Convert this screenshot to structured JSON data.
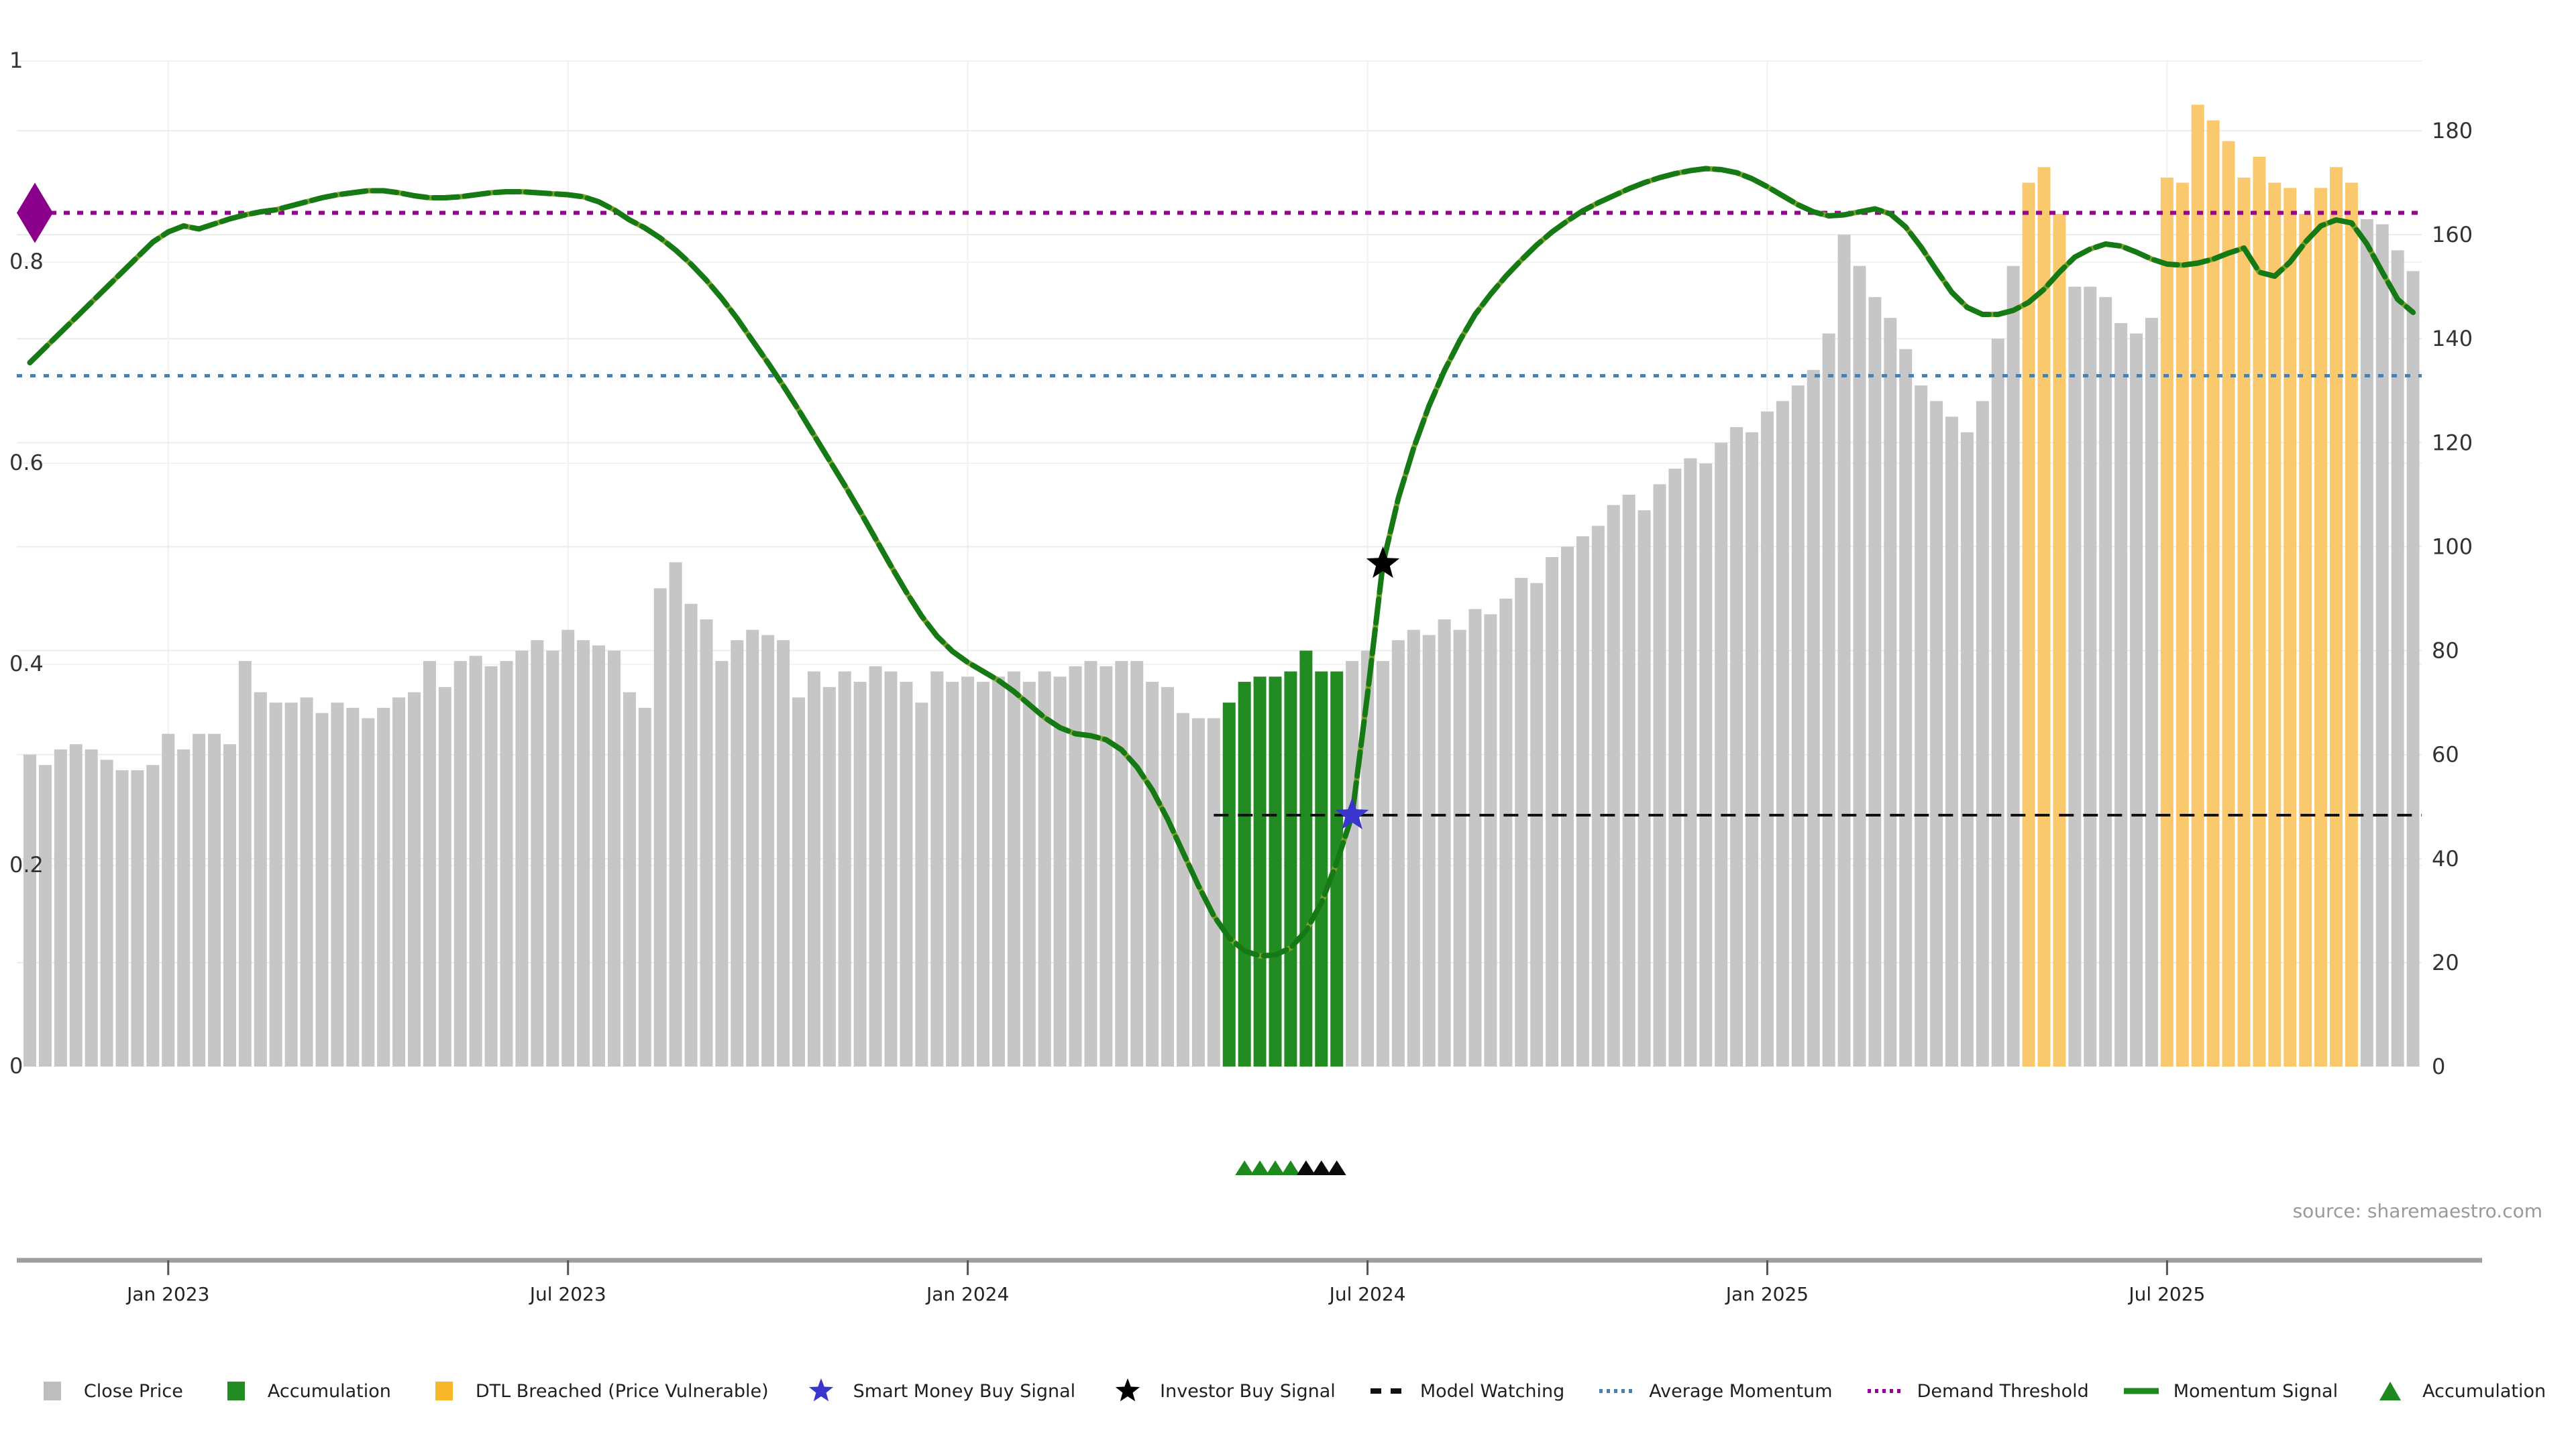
{
  "source_note": "source: sharemaestro.com",
  "colors": {
    "bar_default": "#c6c6c6",
    "bar_accumulation": "#228b22",
    "bar_dtl_breached": "#fbc96d",
    "momentum_line": "#157a15",
    "momentum_line_alt": "#7fa22e",
    "demand_threshold": "#990099",
    "average_momentum": "#4a7fae",
    "model_watching": "#111111",
    "smart_money_star": "#3a35cc",
    "investor_star": "#000000",
    "diamond": "#8b008b",
    "triangle_green": "#1e8a1e",
    "triangle_black": "#0a0a0a",
    "axis_line": "#9e9e9e",
    "tick_text": "#333333"
  },
  "axes": {
    "left": {
      "range": [
        0,
        1
      ],
      "ticks": [
        "0",
        "0.2",
        "0.4",
        "0.6",
        "0.8",
        "1"
      ]
    },
    "right": {
      "range": [
        0,
        180
      ],
      "ticks": [
        "0",
        "20",
        "40",
        "60",
        "80",
        "100",
        "120",
        "140",
        "160",
        "180"
      ]
    },
    "x": {
      "ticks": [
        {
          "label": "Jan 2023",
          "week": 9
        },
        {
          "label": "Jul 2023",
          "week": 35
        },
        {
          "label": "Jan 2024",
          "week": 61
        },
        {
          "label": "Jul 2024",
          "week": 87
        },
        {
          "label": "Jan 2025",
          "week": 113
        },
        {
          "label": "Jul 2025",
          "week": 139
        }
      ]
    }
  },
  "chart_data": {
    "type": "combo",
    "x_unit": "week",
    "weeks": 156,
    "series": [
      {
        "name": "Close Price",
        "type": "bar",
        "axis": "right",
        "values": [
          60,
          58,
          61,
          62,
          61,
          59,
          57,
          57,
          58,
          64,
          61,
          64,
          64,
          62,
          78,
          72,
          70,
          70,
          71,
          68,
          70,
          69,
          67,
          69,
          71,
          72,
          78,
          73,
          78,
          79,
          77,
          78,
          80,
          82,
          80,
          84,
          82,
          81,
          80,
          72,
          69,
          92,
          97,
          89,
          86,
          78,
          82,
          84,
          83,
          82,
          71,
          76,
          73,
          76,
          74,
          77,
          76,
          74,
          70,
          76,
          74,
          75,
          74,
          75,
          76,
          74,
          76,
          75,
          77,
          78,
          77,
          78,
          78,
          74,
          73,
          68,
          67,
          67,
          70,
          74,
          75,
          75,
          76,
          80,
          76,
          76,
          78,
          80,
          78,
          82,
          84,
          83,
          86,
          84,
          88,
          87,
          90,
          94,
          93,
          98,
          100,
          102,
          104,
          108,
          110,
          107,
          112,
          115,
          117,
          116,
          120,
          123,
          122,
          126,
          128,
          131,
          134,
          141,
          160,
          154,
          148,
          144,
          138,
          131,
          128,
          125,
          122,
          128,
          140,
          154,
          170,
          173,
          164,
          150,
          150,
          148,
          143,
          141,
          144,
          171,
          170,
          185,
          182,
          178,
          171,
          175,
          170,
          169,
          164,
          169,
          173,
          170,
          163,
          162,
          157,
          153
        ],
        "accumulation_weeks": [
          78,
          85
        ],
        "dtl_breached_weeks": [
          [
            130,
            132
          ],
          [
            139,
            151
          ]
        ]
      },
      {
        "name": "Momentum Signal",
        "type": "line",
        "axis": "left",
        "values": [
          0.7,
          0.715,
          0.73,
          0.745,
          0.76,
          0.775,
          0.79,
          0.805,
          0.82,
          0.83,
          0.836,
          0.833,
          0.838,
          0.843,
          0.847,
          0.85,
          0.852,
          0.856,
          0.86,
          0.864,
          0.867,
          0.869,
          0.871,
          0.871,
          0.869,
          0.866,
          0.864,
          0.864,
          0.865,
          0.867,
          0.869,
          0.87,
          0.87,
          0.869,
          0.868,
          0.867,
          0.865,
          0.86,
          0.852,
          0.842,
          0.834,
          0.824,
          0.812,
          0.798,
          0.782,
          0.764,
          0.744,
          0.722,
          0.7,
          0.677,
          0.653,
          0.628,
          0.603,
          0.578,
          0.552,
          0.525,
          0.498,
          0.472,
          0.448,
          0.428,
          0.413,
          0.402,
          0.393,
          0.384,
          0.373,
          0.36,
          0.347,
          0.337,
          0.331,
          0.329,
          0.325,
          0.315,
          0.298,
          0.275,
          0.246,
          0.213,
          0.18,
          0.15,
          0.128,
          0.115,
          0.11,
          0.111,
          0.118,
          0.135,
          0.163,
          0.203,
          0.25,
          0.37,
          0.5,
          0.565,
          0.615,
          0.657,
          0.692,
          0.722,
          0.748,
          0.768,
          0.786,
          0.802,
          0.817,
          0.83,
          0.841,
          0.851,
          0.859,
          0.866,
          0.873,
          0.879,
          0.884,
          0.888,
          0.891,
          0.893,
          0.892,
          0.889,
          0.883,
          0.875,
          0.866,
          0.857,
          0.85,
          0.846,
          0.847,
          0.85,
          0.853,
          0.848,
          0.835,
          0.815,
          0.792,
          0.77,
          0.755,
          0.748,
          0.748,
          0.752,
          0.76,
          0.773,
          0.79,
          0.805,
          0.813,
          0.818,
          0.816,
          0.81,
          0.803,
          0.798,
          0.797,
          0.799,
          0.803,
          0.809,
          0.814,
          0.79,
          0.786,
          0.8,
          0.82,
          0.836,
          0.842,
          0.839,
          0.818,
          0.79,
          0.763,
          0.75
        ]
      }
    ],
    "overlays": {
      "demand_threshold": {
        "value": 0.849,
        "axis": "left"
      },
      "average_momentum": {
        "value": 0.687,
        "axis": "left"
      },
      "model_watching": {
        "value": 0.25,
        "axis": "left",
        "start_week": 77
      }
    },
    "markers": {
      "demand_diamond": {
        "week": 0.7,
        "value": 0.849
      },
      "smart_money_buy": {
        "week": 86,
        "value": 0.25
      },
      "investor_buy": {
        "week": 88,
        "value": 0.5
      },
      "accumulation_triangles_green": [
        79,
        80,
        81,
        82
      ],
      "accumulation_triangles_black": [
        83,
        84,
        85
      ]
    }
  },
  "legend": {
    "items": [
      {
        "id": "close-price",
        "swatch": "square",
        "color": "#bdbdbd",
        "label": "Close Price"
      },
      {
        "id": "accumulation-bar",
        "swatch": "square",
        "color": "#228b22",
        "label": "Accumulation"
      },
      {
        "id": "dtl-breached",
        "swatch": "square",
        "color": "#f9b72a",
        "label": "DTL Breached (Price Vulnerable)"
      },
      {
        "id": "smart-money-buy-signal",
        "swatch": "star",
        "color": "#3a35cc",
        "label": "Smart Money Buy Signal"
      },
      {
        "id": "investor-buy-signal",
        "swatch": "star",
        "color": "#000000",
        "label": "Investor Buy Signal"
      },
      {
        "id": "model-watching",
        "swatch": "dashes",
        "color": "#111111",
        "label": "Model Watching"
      },
      {
        "id": "average-momentum",
        "swatch": "dots",
        "color": "#4a7fae",
        "label": "Average Momentum"
      },
      {
        "id": "demand-threshold",
        "swatch": "dots",
        "color": "#990099",
        "label": "Demand Threshold"
      },
      {
        "id": "momentum-signal",
        "swatch": "line",
        "color": "#1d8a1d",
        "label": "Momentum Signal"
      },
      {
        "id": "accumulation-marker",
        "swatch": "triangle",
        "color": "#1e8a1e",
        "label": "Accumulation"
      }
    ]
  }
}
